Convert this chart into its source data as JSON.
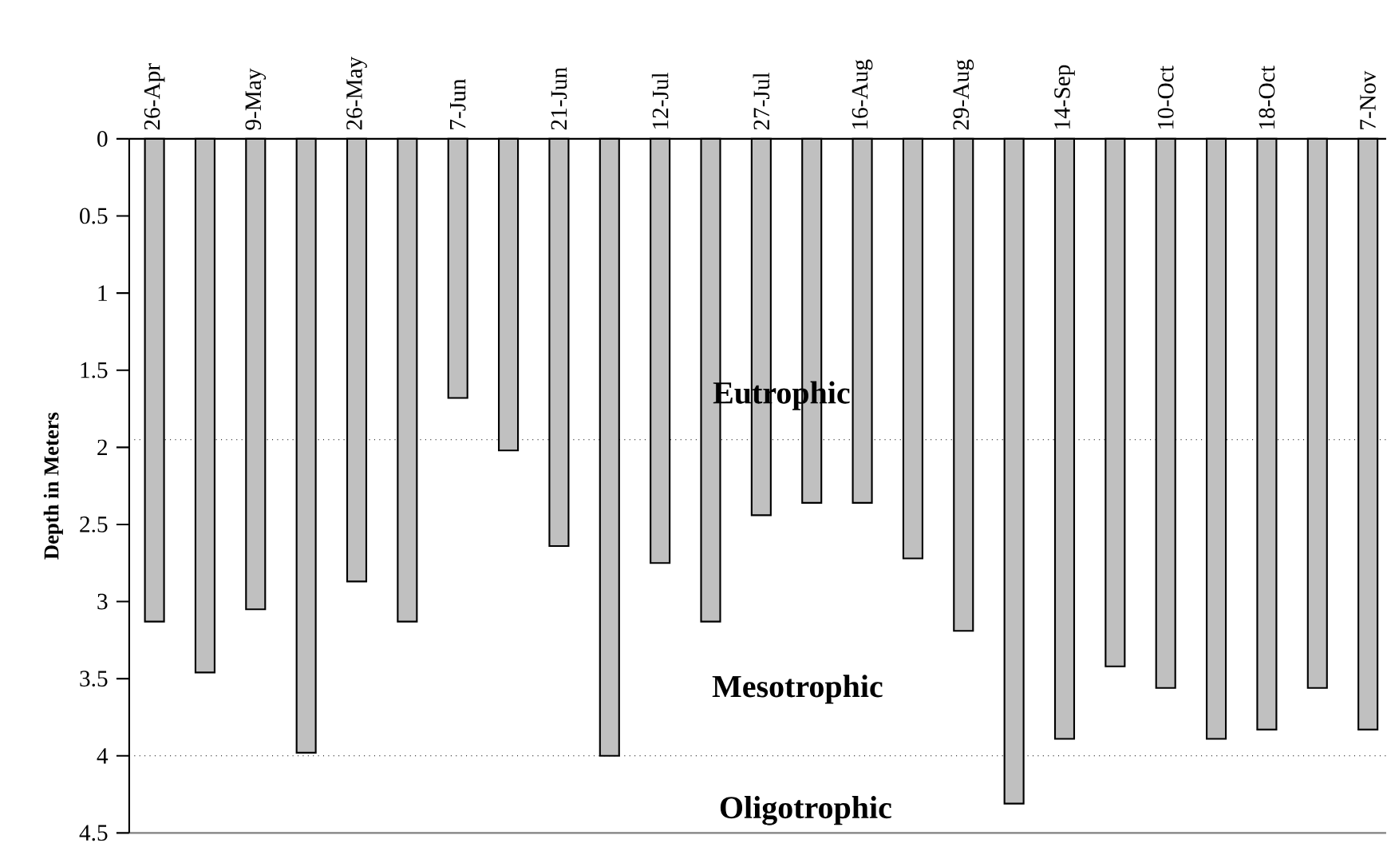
{
  "chart_data": {
    "type": "bar",
    "ylabel": "Depth in Meters",
    "categories": [
      "26-Apr",
      null,
      "9-May",
      null,
      "26-May",
      null,
      "7-Jun",
      null,
      "21-Jun",
      null,
      "12-Jul",
      null,
      "27-Jul",
      null,
      "16-Aug",
      null,
      "29-Aug",
      null,
      "14-Sep",
      null,
      "10-Oct",
      null,
      "18-Oct",
      null,
      "7-Nov"
    ],
    "values": [
      3.13,
      3.46,
      3.05,
      3.98,
      2.87,
      3.13,
      1.68,
      2.02,
      2.64,
      4.0,
      2.75,
      3.13,
      2.44,
      2.36,
      2.36,
      2.72,
      3.19,
      4.31,
      3.89,
      3.42,
      3.56,
      3.89,
      3.83,
      3.56,
      3.83
    ],
    "color": "#c0c0c0",
    "ylim": [
      4.5,
      0
    ],
    "yticks": [
      0,
      0.5,
      1,
      1.5,
      2,
      2.5,
      3,
      3.5,
      4,
      4.5
    ],
    "ref_lines": [
      {
        "axis": "y",
        "value": 1.95,
        "line_style": "dotted"
      },
      {
        "axis": "y",
        "value": 4,
        "line_style": "dotted"
      }
    ],
    "annotations": [
      "Eutrophic",
      "Mesotrophic",
      "Oligotrophic"
    ]
  }
}
